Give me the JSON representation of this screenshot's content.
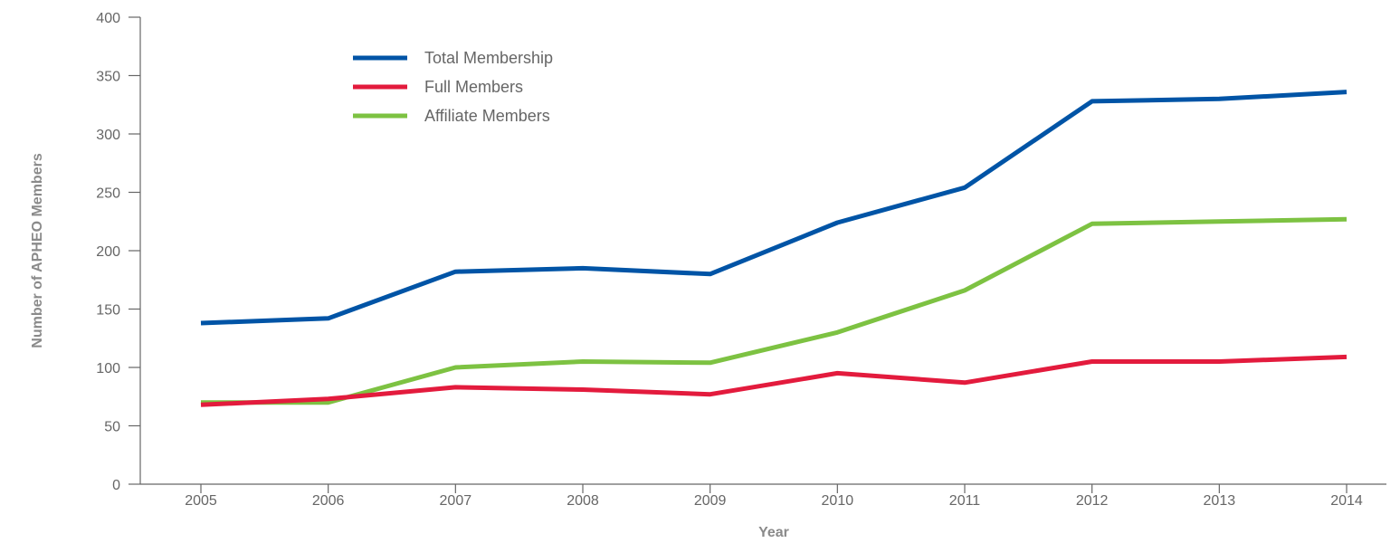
{
  "chart_data": {
    "type": "line",
    "title": "",
    "xlabel": "Year",
    "ylabel": "Number of APHEO Members",
    "ylim": [
      0,
      400
    ],
    "yticks": [
      0,
      50,
      100,
      150,
      200,
      250,
      300,
      350,
      400
    ],
    "categories": [
      "2005",
      "2006",
      "2007",
      "2008",
      "2009",
      "2010",
      "2011",
      "2012",
      "2013",
      "2014"
    ],
    "grid": false,
    "legend_position": "top-left",
    "series": [
      {
        "name": "Total Membership",
        "color": "#0054a6",
        "values": [
          138,
          142,
          182,
          185,
          180,
          224,
          254,
          328,
          330,
          336
        ]
      },
      {
        "name": "Full Members",
        "color": "#e31b3d",
        "values": [
          68,
          73,
          83,
          81,
          77,
          95,
          87,
          105,
          105,
          109
        ]
      },
      {
        "name": "Affiliate Members",
        "color": "#7dc242",
        "values": [
          70,
          70,
          100,
          105,
          104,
          130,
          166,
          223,
          225,
          227
        ]
      }
    ]
  }
}
